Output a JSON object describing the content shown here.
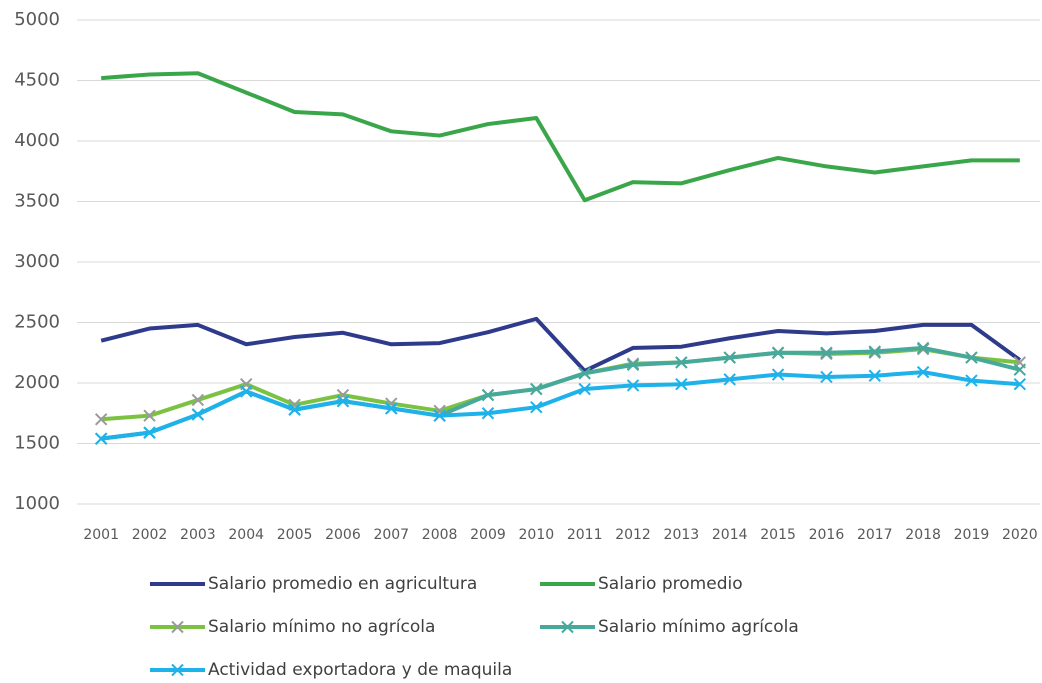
{
  "chart_data": {
    "type": "line",
    "categories": [
      "2001",
      "2002",
      "2003",
      "2004",
      "2005",
      "2006",
      "2007",
      "2008",
      "2009",
      "2010",
      "2011",
      "2012",
      "2013",
      "2014",
      "2015",
      "2016",
      "2017",
      "2018",
      "2019",
      "2020"
    ],
    "ylim": [
      1000,
      5000
    ],
    "yticks": [
      1000,
      1500,
      2000,
      2500,
      3000,
      3500,
      4000,
      4500,
      5000
    ],
    "grid": true,
    "legend": "bottom",
    "series": [
      {
        "name": "Salario promedio en agricultura",
        "color": "#2e3b8c",
        "marker": "none",
        "values": [
          2350,
          2450,
          2480,
          2320,
          2380,
          2415,
          2320,
          2330,
          2420,
          2530,
          2100,
          2290,
          2300,
          2370,
          2430,
          2410,
          2430,
          2480,
          2480,
          2190
        ]
      },
      {
        "name": "Salario promedio",
        "color": "#3aa64a",
        "marker": "none",
        "values": [
          4520,
          4550,
          4560,
          4400,
          4240,
          4220,
          4080,
          4045,
          4140,
          4190,
          3510,
          3660,
          3650,
          3760,
          3860,
          3790,
          3740,
          3790,
          3840,
          3840
        ]
      },
      {
        "name": "Salario mínimo no agrícola",
        "color": "#7cc242",
        "marker": "x",
        "marker_color": "#9a9a9a",
        "values": [
          1700,
          1730,
          1860,
          1990,
          1820,
          1900,
          1830,
          1770,
          1900,
          1950,
          2080,
          2160,
          2170,
          2210,
          2250,
          2240,
          2250,
          2280,
          2210,
          2170
        ]
      },
      {
        "name": "Salario mínimo agrícola",
        "color": "#46a99b",
        "marker": "x",
        "marker_color": "#46a99b",
        "values": [
          1540,
          1590,
          1740,
          1930,
          1780,
          1850,
          1790,
          1730,
          1900,
          1950,
          2080,
          2150,
          2170,
          2210,
          2250,
          2250,
          2260,
          2290,
          2210,
          2110
        ]
      },
      {
        "name": "Actividad exportadora y de maquila",
        "color": "#1fb2ea",
        "marker": "x",
        "marker_color": "#1fb2ea",
        "values": [
          1540,
          1590,
          1740,
          1930,
          1780,
          1850,
          1790,
          1730,
          1750,
          1800,
          1950,
          1980,
          1990,
          2030,
          2070,
          2050,
          2060,
          2090,
          2020,
          1990
        ]
      }
    ]
  }
}
